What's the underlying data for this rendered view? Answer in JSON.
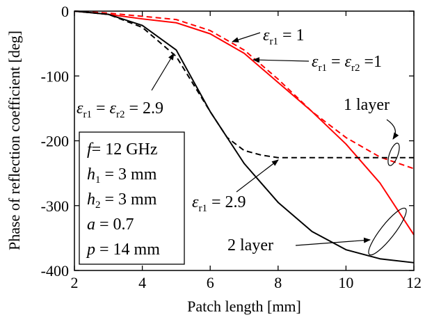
{
  "chart_data": {
    "type": "line",
    "xlabel": "Patch length [mm]",
    "ylabel": "Phase of reflection coefficient [deg]",
    "xlim": [
      2,
      12
    ],
    "ylim": [
      -400,
      0
    ],
    "x_ticks": [
      "2",
      "4",
      "6",
      "8",
      "10",
      "12"
    ],
    "y_ticks": [
      "0",
      "-100",
      "-200",
      "-300",
      "-400"
    ],
    "grid": false,
    "series": [
      {
        "name": "εr1 = 1",
        "group": "1 layer",
        "color": "#ff0000",
        "dash": "dashed",
        "x": [
          2,
          3,
          4,
          5,
          6,
          7,
          8,
          9,
          10,
          11,
          12
        ],
        "y": [
          0,
          -3,
          -8,
          -13,
          -30,
          -60,
          -105,
          -155,
          -195,
          -225,
          -243
        ]
      },
      {
        "name": "εr1 = εr2 = 1",
        "group": "2 layer",
        "color": "#ff0000",
        "dash": "solid",
        "x": [
          2,
          3,
          4,
          5,
          6,
          7,
          8,
          9,
          10,
          11,
          12
        ],
        "y": [
          0,
          -5,
          -12,
          -18,
          -35,
          -65,
          -110,
          -155,
          -205,
          -265,
          -345
        ]
      },
      {
        "name": "εr1 = 2.9",
        "group": "1 layer",
        "color": "#000000",
        "dash": "dashed",
        "x": [
          2,
          3,
          4,
          5,
          6,
          6.5,
          7,
          7.5,
          8,
          9,
          10,
          11,
          12
        ],
        "y": [
          0,
          -5,
          -25,
          -70,
          -155,
          -195,
          -215,
          -222,
          -226,
          -226,
          -226,
          -226,
          -226
        ]
      },
      {
        "name": "εr1 = εr2 = 2.9",
        "group": "2 layer",
        "color": "#000000",
        "dash": "solid",
        "x": [
          2,
          3,
          4,
          5,
          6,
          7,
          8,
          9,
          10,
          11,
          12
        ],
        "y": [
          0,
          -5,
          -22,
          -60,
          -155,
          -235,
          -295,
          -340,
          -368,
          -382,
          -388
        ]
      }
    ],
    "annotations": {
      "er1_1": {
        "base": "ε",
        "sub": "r1",
        "rest": " = 1"
      },
      "er1_er2_1": {
        "base": "ε",
        "sub1": "r1",
        "mid": " = ",
        "base2": "ε",
        "sub2": "r2",
        "rest": " =1"
      },
      "er1_er2_29": {
        "base": "ε",
        "sub1": "r1",
        "mid": " = ",
        "base2": "ε",
        "sub2": "r2",
        "rest": " = 2.9"
      },
      "er1_29": {
        "base": "ε",
        "sub": "r1",
        "rest": " = 2.9"
      },
      "one_layer": "1 layer",
      "two_layer": "2 layer"
    },
    "params": [
      {
        "sym": "f",
        "sub": "",
        "val": "= 12 GHz"
      },
      {
        "sym": "h",
        "sub": "1",
        "val": " = 3 mm"
      },
      {
        "sym": "h",
        "sub": "2",
        "val": " = 3 mm"
      },
      {
        "sym": "a",
        "sub": "",
        "val": " = 0.7"
      },
      {
        "sym": "p",
        "sub": "",
        "val": " = 14 mm"
      }
    ]
  }
}
